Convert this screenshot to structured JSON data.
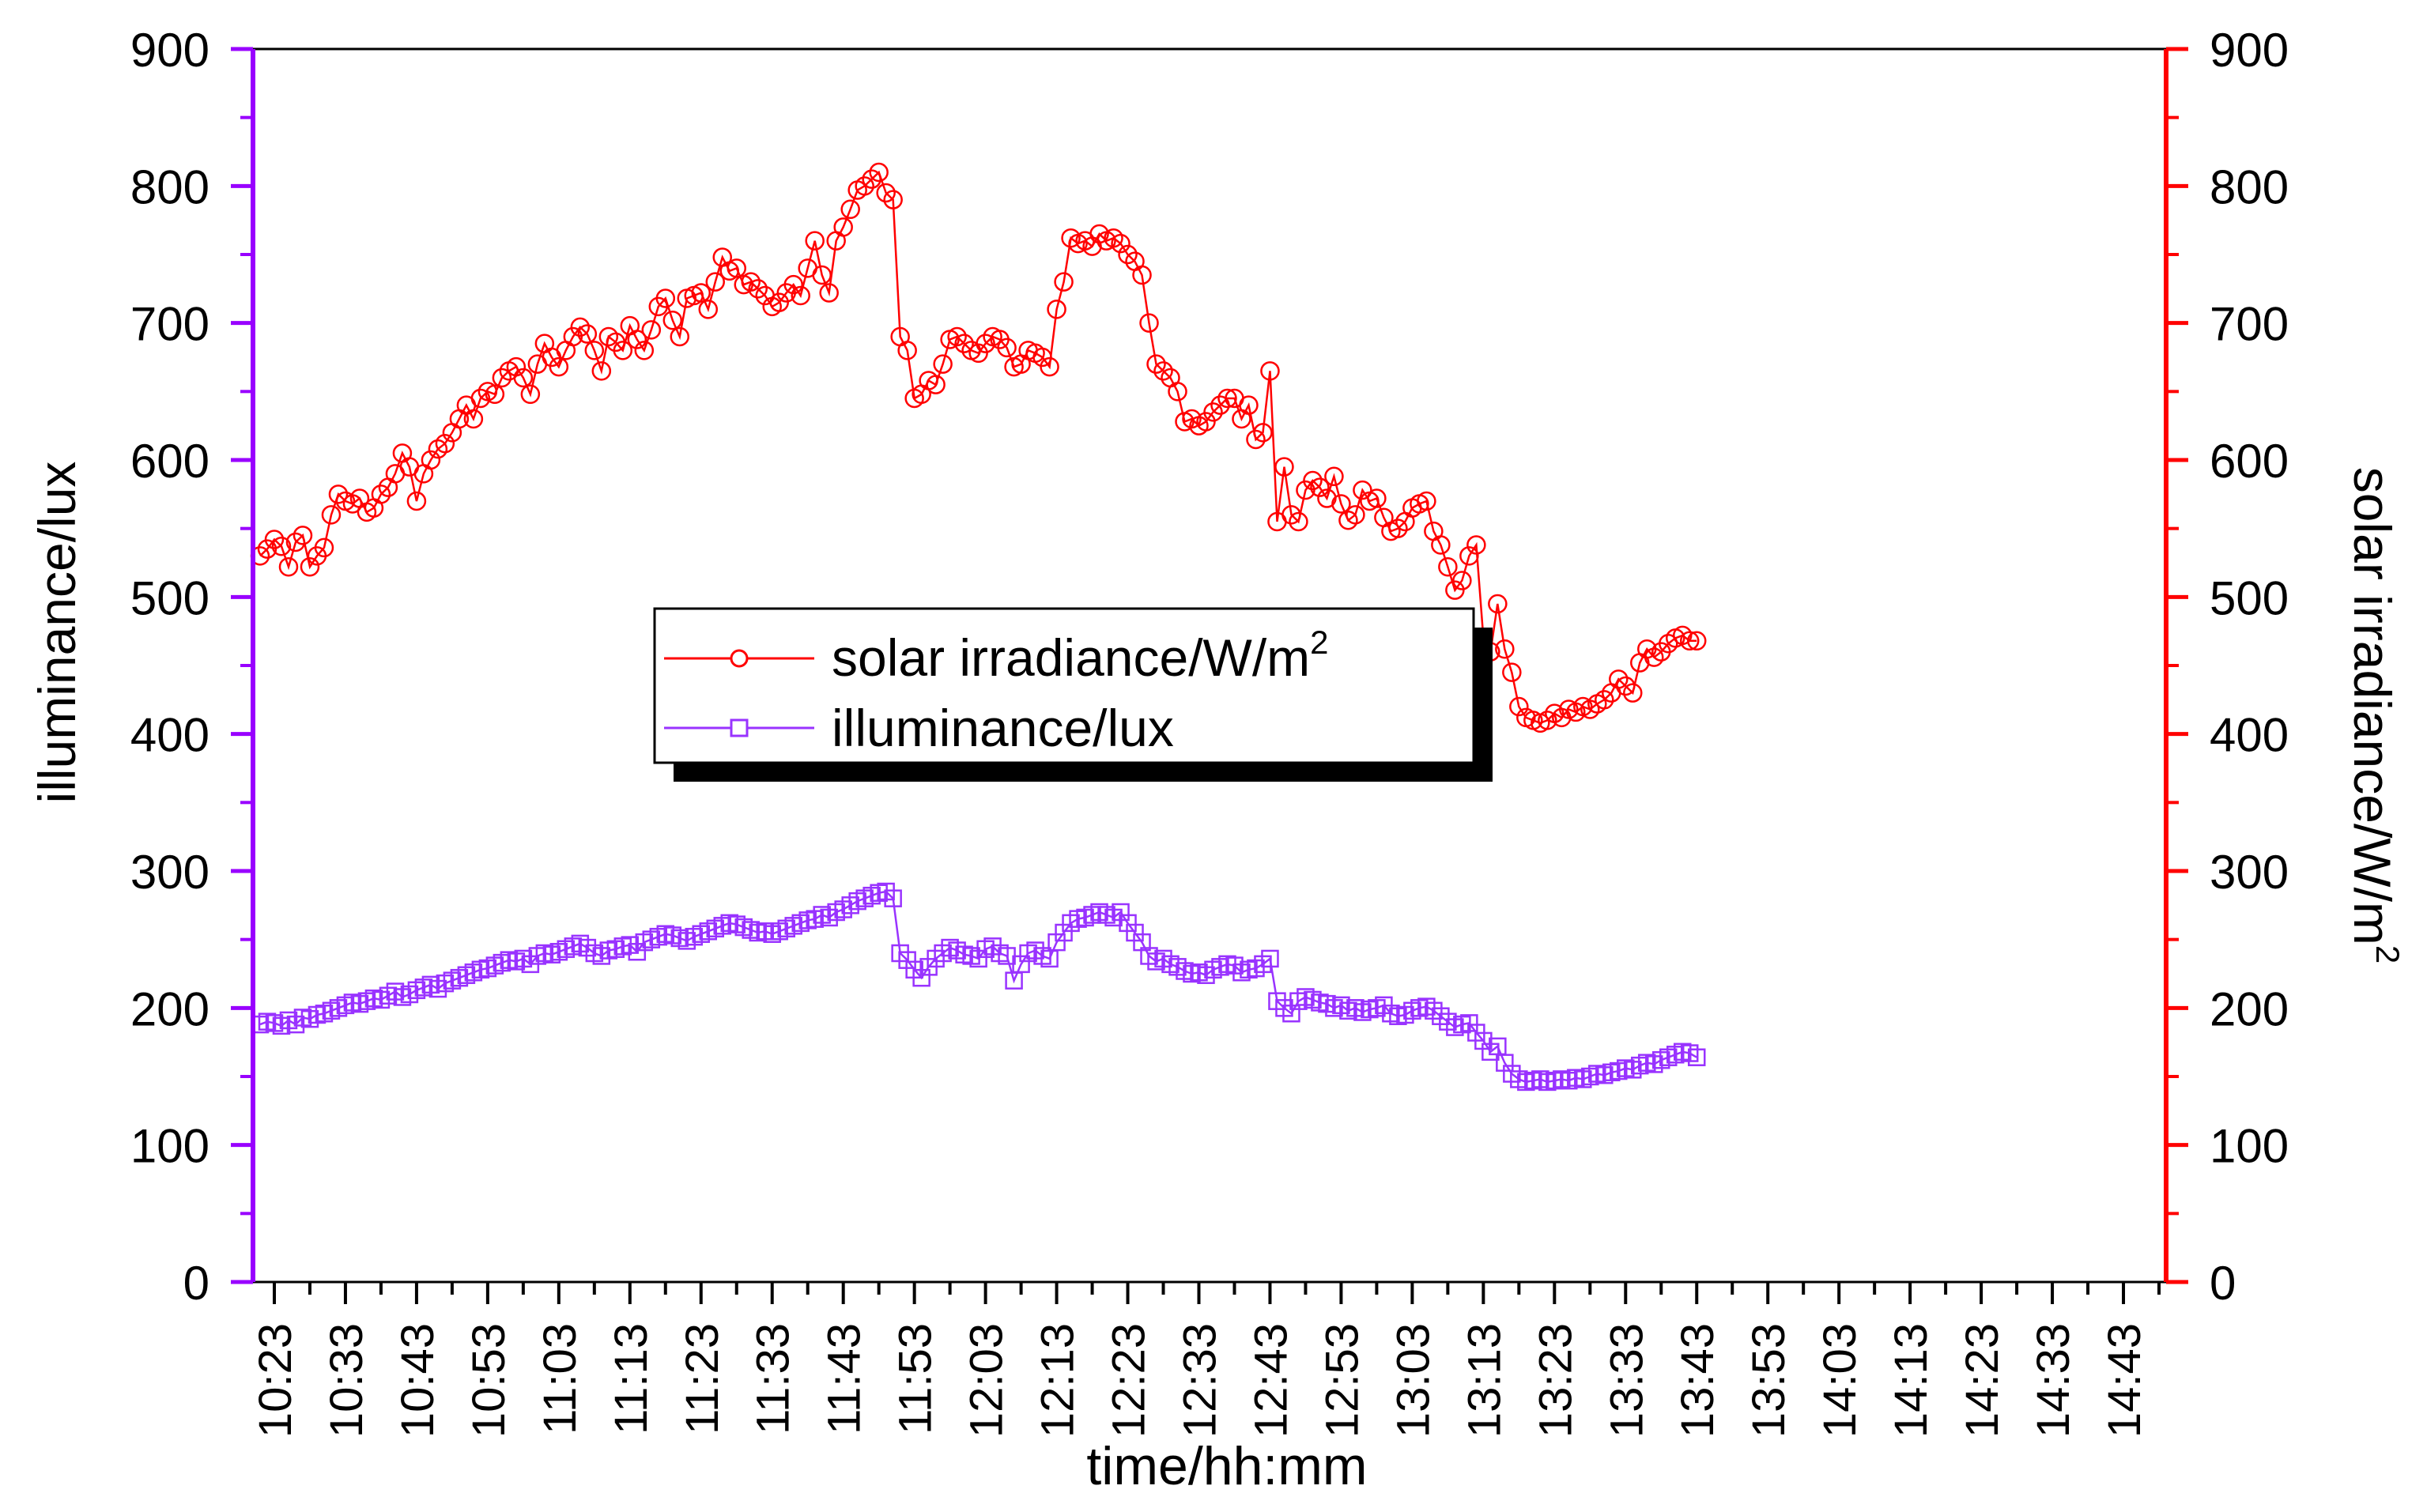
{
  "chart_data": {
    "type": "line",
    "xlabel": "time/hh:mm",
    "ylabel_left": "illuminance/lux",
    "ylabel_right": "solar irradiance/W/m",
    "ylabel_right_sup": "2",
    "ylim_left": [
      0,
      900
    ],
    "ylim_right": [
      0,
      900
    ],
    "y_ticks": [
      "0",
      "100",
      "200",
      "300",
      "400",
      "500",
      "600",
      "700",
      "800",
      "900"
    ],
    "x_ticks": [
      "10:23",
      "10:33",
      "10:43",
      "10:53",
      "11:03",
      "11:13",
      "11:23",
      "11:33",
      "11:43",
      "11:53",
      "12:03",
      "12:13",
      "12:23",
      "12:33",
      "12:43",
      "12:53",
      "13:03",
      "13:13",
      "13:23",
      "13:33",
      "13:43",
      "13:53",
      "14:03",
      "14:13",
      "14:23",
      "14:33",
      "14:43"
    ],
    "x_start_minute_label": "10:21",
    "legend": {
      "placement": "center-left",
      "frame": "boxed with drop shadow"
    },
    "grid": false,
    "colors": {
      "irradiance": "#ff0000",
      "illuminance": "#9933ff",
      "left_axis": "#9900ff",
      "right_axis": "#ff0000"
    },
    "series": [
      {
        "name": "solar irradiance/W/m",
        "name_sup": "2",
        "axis": "right",
        "marker": "circle",
        "x_start": "10:21",
        "x_step_minutes": 1,
        "values": [
          530,
          535,
          542,
          537,
          522,
          540,
          545,
          522,
          530,
          536,
          560,
          575,
          570,
          568,
          572,
          562,
          565,
          575,
          580,
          590,
          605,
          595,
          570,
          590,
          600,
          608,
          612,
          620,
          630,
          640,
          630,
          645,
          650,
          648,
          660,
          665,
          668,
          660,
          648,
          670,
          685,
          675,
          668,
          680,
          690,
          697,
          692,
          680,
          665,
          690,
          686,
          680,
          698,
          688,
          680,
          695,
          712,
          718,
          702,
          690,
          718,
          720,
          722,
          710,
          730,
          748,
          738,
          740,
          728,
          730,
          725,
          720,
          712,
          715,
          722,
          728,
          720,
          740,
          760,
          735,
          722,
          760,
          770,
          783,
          797,
          800,
          805,
          810,
          795,
          790,
          690,
          680,
          645,
          648,
          658,
          655,
          670,
          688,
          690,
          685,
          680,
          678,
          685,
          690,
          688,
          682,
          668,
          670,
          680,
          678,
          675,
          668,
          710,
          730,
          762,
          758,
          760,
          756,
          765,
          760,
          762,
          758,
          750,
          745,
          735,
          700,
          670,
          665,
          660,
          650,
          628,
          630,
          625,
          628,
          635,
          640,
          645,
          645,
          630,
          640,
          615,
          620,
          665,
          555,
          595,
          560,
          555,
          578,
          585,
          580,
          572,
          588,
          568,
          556,
          560,
          578,
          570,
          572,
          558,
          548,
          550,
          555,
          565,
          568,
          570,
          548,
          538,
          522,
          505,
          512,
          530,
          538,
          470,
          460,
          495,
          462,
          445,
          420,
          412,
          410,
          408,
          410,
          415,
          412,
          418,
          416,
          420,
          418,
          422,
          425,
          430,
          440,
          435,
          430,
          452,
          462,
          456,
          460,
          466,
          470,
          472,
          468,
          468
        ]
      },
      {
        "name": "illuminance/lux",
        "axis": "left",
        "marker": "square",
        "x_start": "10:21",
        "x_step_minutes": 1,
        "values": [
          188,
          190,
          189,
          187,
          191,
          188,
          193,
          192,
          195,
          196,
          198,
          200,
          202,
          204,
          203,
          205,
          207,
          206,
          209,
          212,
          208,
          210,
          213,
          215,
          217,
          214,
          218,
          220,
          222,
          224,
          226,
          228,
          229,
          231,
          233,
          235,
          234,
          236,
          232,
          238,
          240,
          239,
          241,
          243,
          245,
          247,
          244,
          240,
          238,
          242,
          243,
          245,
          246,
          241,
          248,
          250,
          252,
          254,
          253,
          251,
          249,
          252,
          254,
          256,
          258,
          260,
          262,
          261,
          259,
          257,
          255,
          256,
          254,
          256,
          258,
          260,
          262,
          264,
          265,
          268,
          266,
          270,
          272,
          275,
          278,
          280,
          282,
          284,
          285,
          280,
          240,
          235,
          228,
          222,
          230,
          236,
          240,
          244,
          242,
          239,
          238,
          236,
          243,
          245,
          240,
          238,
          220,
          232,
          240,
          242,
          238,
          236,
          248,
          255,
          262,
          265,
          266,
          268,
          270,
          268,
          266,
          270,
          262,
          255,
          248,
          238,
          234,
          236,
          232,
          230,
          227,
          225,
          226,
          224,
          228,
          230,
          232,
          231,
          226,
          228,
          229,
          232,
          236,
          205,
          200,
          196,
          205,
          208,
          206,
          204,
          203,
          200,
          202,
          198,
          200,
          197,
          199,
          200,
          202,
          196,
          194,
          195,
          198,
          200,
          201,
          198,
          194,
          190,
          186,
          188,
          189,
          182,
          176,
          168,
          172,
          160,
          152,
          148,
          146,
          147,
          148,
          146,
          147,
          148,
          147,
          149,
          148,
          150,
          152,
          151,
          153,
          154,
          156,
          155,
          158,
          160,
          159,
          162,
          164,
          166,
          168,
          167,
          164
        ]
      }
    ]
  }
}
